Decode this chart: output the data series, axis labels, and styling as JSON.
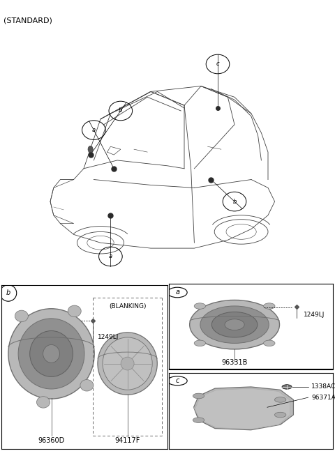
{
  "title": "(STANDARD)",
  "bg_color": "#ffffff",
  "line_color": "#404040",
  "line_color_light": "#888888",
  "gray_dark": "#707070",
  "gray_mid": "#909090",
  "gray_light": "#b8b8b8",
  "gray_lighter": "#cccccc",
  "gray_fill": "#d0d0d0",
  "part_a_name": "96331B",
  "part_a_bolt": "1249LJ",
  "part_b_name": "96360D",
  "part_b_bolt": "1249LJ",
  "part_b2_name": "94117F",
  "part_b2_label": "(BLANKING)",
  "part_c_name": "96371A",
  "part_c_bolt": "1338AC",
  "font_size_title": 8,
  "font_size_label": 6.5,
  "font_size_part": 7
}
